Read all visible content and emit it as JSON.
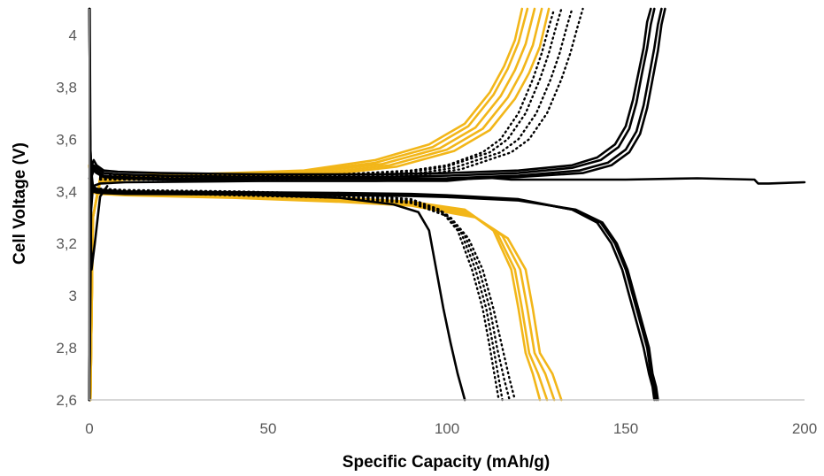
{
  "chart_data": {
    "type": "line",
    "title": "",
    "xlabel": "Specific Capacity  (mAh/g)",
    "ylabel": "Cell Voltage  (V)",
    "xlim": [
      0,
      200
    ],
    "ylim": [
      2.6,
      4.1
    ],
    "x_ticks": [
      0,
      50,
      100,
      150,
      200
    ],
    "y_ticks": [
      2.6,
      2.8,
      3.0,
      3.2,
      3.4,
      3.6,
      3.8,
      4.0
    ],
    "x_tick_labels": [
      "0",
      "50",
      "100",
      "150",
      "200"
    ],
    "y_tick_labels": [
      "2,6",
      "2,8",
      "3",
      "3,2",
      "3,4",
      "3,6",
      "3,8",
      "4"
    ],
    "grid": false,
    "legend": "none",
    "colors": {
      "black": "#000000",
      "gold": "#f2b619",
      "axis": "#bfbfbf",
      "tick_text": "#595959"
    },
    "series": [
      {
        "style": "black-solid",
        "phase": "charge",
        "x": [
          0,
          0.3,
          0.7,
          1.2,
          2,
          4,
          8,
          20,
          50,
          80,
          100,
          120,
          135,
          142,
          147,
          150,
          152,
          153.5,
          155,
          156,
          157
        ],
        "y": [
          2.6,
          3.3,
          3.5,
          3.52,
          3.5,
          3.48,
          3.475,
          3.47,
          3.465,
          3.465,
          3.47,
          3.48,
          3.5,
          3.53,
          3.58,
          3.65,
          3.75,
          3.85,
          3.95,
          4.05,
          4.1
        ]
      },
      {
        "style": "black-solid",
        "phase": "charge",
        "x": [
          0,
          0.3,
          0.7,
          1.2,
          2,
          4,
          8,
          20,
          50,
          80,
          100,
          120,
          135,
          143,
          148,
          151,
          153,
          154.5,
          156,
          157,
          158
        ],
        "y": [
          2.6,
          3.3,
          3.48,
          3.5,
          3.49,
          3.47,
          3.465,
          3.46,
          3.455,
          3.455,
          3.46,
          3.47,
          3.49,
          3.52,
          3.57,
          3.64,
          3.74,
          3.85,
          3.95,
          4.04,
          4.1
        ]
      },
      {
        "style": "black-solid",
        "phase": "charge",
        "x": [
          0,
          0.3,
          0.7,
          1.2,
          2,
          4,
          8,
          20,
          50,
          80,
          100,
          120,
          137,
          145,
          150,
          153,
          155,
          156.5,
          158,
          159,
          160
        ],
        "y": [
          2.6,
          3.3,
          3.47,
          3.49,
          3.48,
          3.46,
          3.455,
          3.45,
          3.448,
          3.448,
          3.45,
          3.46,
          3.48,
          3.51,
          3.56,
          3.63,
          3.73,
          3.84,
          3.95,
          4.04,
          4.1
        ]
      },
      {
        "style": "black-solid",
        "phase": "charge",
        "x": [
          0,
          0.3,
          0.7,
          1.2,
          2,
          4,
          8,
          20,
          50,
          80,
          100,
          120,
          138,
          146,
          151,
          154,
          156,
          157.5,
          159,
          160,
          161
        ],
        "y": [
          2.6,
          3.3,
          3.46,
          3.48,
          3.47,
          3.455,
          3.45,
          3.445,
          3.44,
          3.44,
          3.445,
          3.455,
          3.47,
          3.5,
          3.55,
          3.62,
          3.72,
          3.83,
          3.94,
          4.04,
          4.1
        ]
      },
      {
        "style": "black-solid",
        "phase": "charge",
        "x": [
          0,
          0.5,
          1,
          3,
          10,
          50,
          100,
          104,
          108,
          112,
          118,
          150,
          170,
          186,
          187,
          190,
          200
        ],
        "y": [
          2.6,
          3.33,
          3.42,
          3.43,
          3.435,
          3.44,
          3.44,
          3.445,
          3.45,
          3.452,
          3.445,
          3.445,
          3.45,
          3.445,
          3.43,
          3.43,
          3.435
        ]
      },
      {
        "style": "black-solid",
        "phase": "discharge",
        "x": [
          0,
          0.2,
          0.5,
          1,
          2,
          4,
          10,
          40,
          70,
          90,
          100,
          120,
          135,
          142,
          146,
          149,
          151,
          153,
          155,
          156.5,
          157.5,
          158
        ],
        "y": [
          4.1,
          3.6,
          3.48,
          3.42,
          3.41,
          3.405,
          3.4,
          3.397,
          3.394,
          3.39,
          3.385,
          3.37,
          3.33,
          3.28,
          3.2,
          3.1,
          3.0,
          2.9,
          2.8,
          2.7,
          2.65,
          2.6
        ]
      },
      {
        "style": "black-solid",
        "phase": "discharge",
        "x": [
          0,
          0.2,
          0.5,
          1,
          2,
          4,
          10,
          40,
          70,
          90,
          100,
          120,
          135,
          143,
          147,
          150,
          152,
          154,
          156,
          157,
          158,
          158.5
        ],
        "y": [
          4.1,
          3.6,
          3.47,
          3.41,
          3.4,
          3.398,
          3.395,
          3.393,
          3.39,
          3.386,
          3.382,
          3.368,
          3.33,
          3.28,
          3.2,
          3.1,
          3.0,
          2.9,
          2.8,
          2.7,
          2.65,
          2.6
        ]
      },
      {
        "style": "black-solid",
        "phase": "discharge",
        "x": [
          0,
          0.2,
          0.5,
          1,
          2,
          4,
          10,
          40,
          70,
          90,
          100,
          120,
          136,
          143.5,
          147.5,
          150.5,
          152.5,
          154.5,
          156.5,
          157.5,
          158.5,
          159
        ],
        "y": [
          4.1,
          3.6,
          3.46,
          3.4,
          3.395,
          3.393,
          3.39,
          3.388,
          3.385,
          3.382,
          3.378,
          3.365,
          3.33,
          3.28,
          3.2,
          3.1,
          3.0,
          2.9,
          2.8,
          2.7,
          2.65,
          2.6
        ]
      },
      {
        "style": "black-solid",
        "phase": "discharge",
        "x": [
          0,
          0.5,
          1,
          2,
          4,
          10,
          40,
          70,
          85,
          92,
          95,
          97,
          99,
          101,
          103,
          104,
          105
        ],
        "y": [
          3.45,
          3.42,
          3.41,
          3.405,
          3.4,
          3.398,
          3.39,
          3.375,
          3.35,
          3.32,
          3.25,
          3.1,
          2.95,
          2.82,
          2.7,
          2.65,
          2.6
        ]
      },
      {
        "style": "black-solid",
        "phase": "other",
        "x": [
          0,
          0.1,
          0.2,
          0.3,
          0.35,
          0.6,
          1.5,
          3,
          5
        ],
        "y": [
          2.6,
          4.1,
          3.8,
          3.55,
          3.3,
          3.1,
          3.2,
          3.38,
          3.42
        ]
      },
      {
        "style": "black-dotted",
        "phase": "charge",
        "x": [
          3,
          10,
          40,
          70,
          90,
          100,
          110,
          115,
          120,
          124,
          126.5,
          128.5,
          130
        ],
        "y": [
          3.46,
          3.46,
          3.46,
          3.465,
          3.48,
          3.5,
          3.55,
          3.6,
          3.7,
          3.83,
          3.93,
          4.03,
          4.1
        ]
      },
      {
        "style": "black-dotted",
        "phase": "charge",
        "x": [
          3,
          10,
          40,
          70,
          90,
          100,
          112,
          117,
          122,
          126,
          128.5,
          130.5,
          132
        ],
        "y": [
          3.455,
          3.455,
          3.455,
          3.46,
          3.475,
          3.495,
          3.55,
          3.6,
          3.7,
          3.83,
          3.93,
          4.03,
          4.1
        ]
      },
      {
        "style": "black-dotted",
        "phase": "charge",
        "x": [
          3,
          10,
          40,
          70,
          92,
          102,
          115,
          120,
          125,
          129,
          131.5,
          133.5,
          135
        ],
        "y": [
          3.45,
          3.45,
          3.45,
          3.455,
          3.47,
          3.49,
          3.55,
          3.6,
          3.7,
          3.83,
          3.93,
          4.03,
          4.1
        ]
      },
      {
        "style": "black-dotted",
        "phase": "charge",
        "x": [
          3,
          10,
          40,
          70,
          94,
          104,
          118,
          123,
          128,
          132,
          134.5,
          136.5,
          138
        ],
        "y": [
          3.445,
          3.445,
          3.445,
          3.45,
          3.465,
          3.485,
          3.55,
          3.6,
          3.7,
          3.83,
          3.93,
          4.03,
          4.1
        ]
      },
      {
        "style": "black-dotted",
        "phase": "discharge",
        "x": [
          3,
          10,
          40,
          70,
          90,
          98,
          103,
          107,
          110,
          112,
          113.5,
          114.5
        ],
        "y": [
          3.41,
          3.405,
          3.4,
          3.39,
          3.37,
          3.33,
          3.25,
          3.1,
          2.95,
          2.8,
          2.68,
          2.6
        ]
      },
      {
        "style": "black-dotted",
        "phase": "discharge",
        "x": [
          3,
          10,
          40,
          70,
          90,
          99,
          104,
          108,
          111,
          113,
          114.5,
          115.5
        ],
        "y": [
          3.405,
          3.4,
          3.395,
          3.385,
          3.365,
          3.32,
          3.24,
          3.1,
          2.95,
          2.8,
          2.68,
          2.6
        ]
      },
      {
        "style": "black-dotted",
        "phase": "discharge",
        "x": [
          3,
          10,
          40,
          70,
          90,
          100,
          105,
          109,
          112,
          114,
          116,
          117.5
        ],
        "y": [
          3.4,
          3.398,
          3.39,
          3.38,
          3.36,
          3.31,
          3.23,
          3.1,
          2.95,
          2.8,
          2.68,
          2.6
        ]
      },
      {
        "style": "black-dotted",
        "phase": "discharge",
        "x": [
          3,
          10,
          40,
          70,
          90,
          101,
          106,
          110,
          113,
          115.5,
          117.5,
          119
        ],
        "y": [
          3.398,
          3.395,
          3.385,
          3.375,
          3.355,
          3.3,
          3.22,
          3.1,
          2.95,
          2.8,
          2.68,
          2.6
        ]
      },
      {
        "style": "gold-solid",
        "phase": "charge",
        "x": [
          0.3,
          1,
          3,
          10,
          40,
          60,
          80,
          95,
          105,
          112,
          116,
          119,
          121
        ],
        "y": [
          2.6,
          3.3,
          3.45,
          3.46,
          3.47,
          3.48,
          3.52,
          3.58,
          3.66,
          3.78,
          3.88,
          3.98,
          4.1
        ]
      },
      {
        "style": "gold-solid",
        "phase": "charge",
        "x": [
          0.3,
          1,
          3,
          10,
          40,
          60,
          80,
          96,
          106,
          113,
          117,
          120,
          122.5
        ],
        "y": [
          2.6,
          3.3,
          3.45,
          3.46,
          3.465,
          3.475,
          3.51,
          3.57,
          3.65,
          3.77,
          3.87,
          3.97,
          4.1
        ]
      },
      {
        "style": "gold-solid",
        "phase": "charge",
        "x": [
          0.3,
          1,
          3,
          10,
          40,
          60,
          82,
          98,
          108,
          115,
          119,
          122,
          124.5
        ],
        "y": [
          2.6,
          3.3,
          3.445,
          3.455,
          3.46,
          3.47,
          3.505,
          3.565,
          3.645,
          3.765,
          3.865,
          3.965,
          4.1
        ]
      },
      {
        "style": "gold-solid",
        "phase": "charge",
        "x": [
          0.3,
          1,
          3,
          10,
          40,
          62,
          84,
          100,
          110,
          117,
          121,
          124,
          126.5
        ],
        "y": [
          2.6,
          3.3,
          3.44,
          3.45,
          3.455,
          3.465,
          3.5,
          3.56,
          3.64,
          3.76,
          3.86,
          3.96,
          4.1
        ]
      },
      {
        "style": "gold-solid",
        "phase": "charge",
        "x": [
          0.3,
          1,
          3,
          10,
          40,
          64,
          86,
          102,
          112,
          119,
          123,
          126,
          128.5
        ],
        "y": [
          2.6,
          3.3,
          3.435,
          3.445,
          3.45,
          3.46,
          3.495,
          3.555,
          3.635,
          3.755,
          3.855,
          3.955,
          4.1
        ]
      },
      {
        "style": "gold-solid",
        "phase": "discharge",
        "x": [
          0,
          0.5,
          1,
          3,
          10,
          40,
          70,
          90,
          105,
          113,
          118,
          120,
          122,
          124,
          126
        ],
        "y": [
          3.5,
          3.42,
          3.41,
          3.405,
          3.4,
          3.39,
          3.375,
          3.36,
          3.33,
          3.25,
          3.1,
          2.95,
          2.78,
          2.7,
          2.6
        ]
      },
      {
        "style": "gold-solid",
        "phase": "discharge",
        "x": [
          0,
          0.5,
          1,
          3,
          10,
          40,
          70,
          90,
          106,
          114,
          119,
          121,
          123,
          125.5,
          128
        ],
        "y": [
          3.5,
          3.415,
          3.405,
          3.4,
          3.395,
          3.385,
          3.37,
          3.355,
          3.32,
          3.24,
          3.1,
          2.95,
          2.78,
          2.7,
          2.6
        ]
      },
      {
        "style": "gold-solid",
        "phase": "discharge",
        "x": [
          0,
          0.5,
          1,
          3,
          10,
          40,
          70,
          90,
          107,
          115.5,
          120.5,
          122.5,
          124.5,
          127.5,
          130
        ],
        "y": [
          3.5,
          3.41,
          3.4,
          3.395,
          3.39,
          3.38,
          3.365,
          3.35,
          3.31,
          3.23,
          3.1,
          2.95,
          2.78,
          2.7,
          2.6
        ]
      },
      {
        "style": "gold-solid",
        "phase": "discharge",
        "x": [
          0,
          0.5,
          1,
          3,
          10,
          40,
          70,
          90,
          108,
          117,
          122,
          124,
          126,
          129.5,
          132
        ],
        "y": [
          3.5,
          3.405,
          3.395,
          3.39,
          3.385,
          3.375,
          3.36,
          3.345,
          3.3,
          3.22,
          3.1,
          2.95,
          2.78,
          2.7,
          2.6
        ]
      }
    ]
  }
}
